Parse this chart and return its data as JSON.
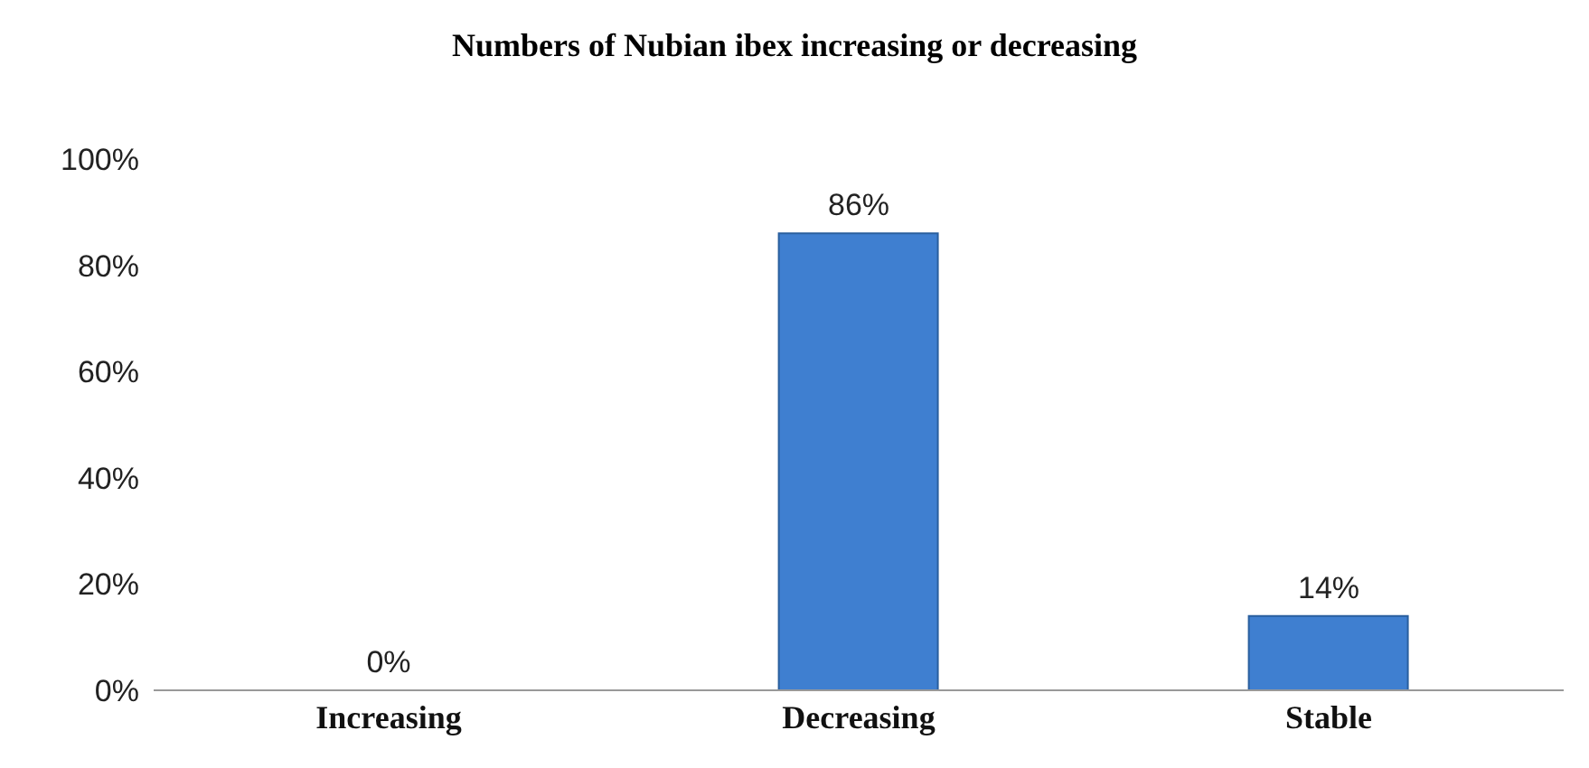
{
  "chart_data": {
    "type": "bar",
    "title": "Numbers of Nubian ibex increasing or decreasing",
    "categories": [
      "Increasing",
      "Decreasing",
      "Stable"
    ],
    "values": [
      0,
      86,
      14
    ],
    "color": "#3f7fd0",
    "value_labels": [
      "0%",
      "86%",
      "14%"
    ],
    "ylim": [
      0,
      100
    ],
    "yticks": [
      {
        "value": 0,
        "label": "0%"
      },
      {
        "value": 20,
        "label": "20%"
      },
      {
        "value": 40,
        "label": "40%"
      },
      {
        "value": 60,
        "label": "60%"
      },
      {
        "value": 80,
        "label": "80%"
      },
      {
        "value": 100,
        "label": "100%"
      }
    ],
    "grid": false,
    "legend": false
  }
}
